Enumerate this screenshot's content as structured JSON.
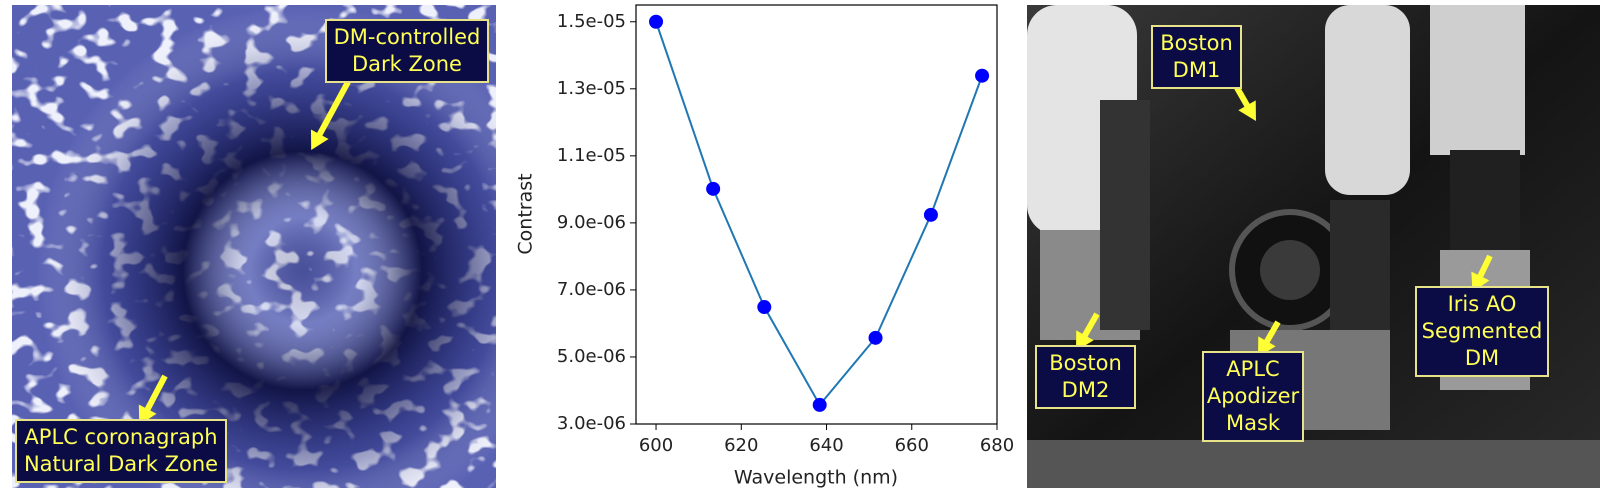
{
  "chart_data": {
    "type": "line",
    "x_label": "Wavelength (nm)",
    "y_label": "Contrast",
    "x": [
      600,
      613.4,
      625.4,
      638.4,
      651.5,
      664.5,
      676.5
    ],
    "series": [
      {
        "color": "#1f77b4",
        "marker_color": "#0000ff",
        "values": [
          1.5e-05,
          1.0015e-05,
          6.49e-06,
          3.57e-06,
          5.57e-06,
          9.24e-06,
          1.339e-05
        ]
      }
    ],
    "xlim": [
      595.3,
      680
    ],
    "xticks": [
      600,
      620,
      640,
      660,
      680
    ],
    "ylim": [
      3e-06,
      1.55e-05
    ],
    "yticks": [
      {
        "value": 3e-06,
        "label": "3.0e-06"
      },
      {
        "value": 5e-06,
        "label": "5.0e-06"
      },
      {
        "value": 7e-06,
        "label": "7.0e-06"
      },
      {
        "value": 9e-06,
        "label": "9.0e-06"
      },
      {
        "value": 1.1e-05,
        "label": "1.1e-05"
      },
      {
        "value": 1.3e-05,
        "label": "1.3e-05"
      },
      {
        "value": 1.5e-05,
        "label": "1.5e-05"
      }
    ],
    "grid": false
  },
  "left_image": {
    "labels": [
      {
        "lines": [
          "DM-controlled",
          "Dark Zone"
        ]
      },
      {
        "lines": [
          "APLC coronagraph",
          "Natural Dark Zone"
        ]
      }
    ]
  },
  "right_image": {
    "labels": [
      {
        "lines": [
          "Boston",
          "DM1"
        ]
      },
      {
        "lines": [
          "Boston",
          "DM2"
        ]
      },
      {
        "lines": [
          "APLC",
          "Apodizer",
          "Mask"
        ]
      },
      {
        "lines": [
          "Iris AO",
          "Segmented",
          "DM"
        ]
      }
    ]
  }
}
